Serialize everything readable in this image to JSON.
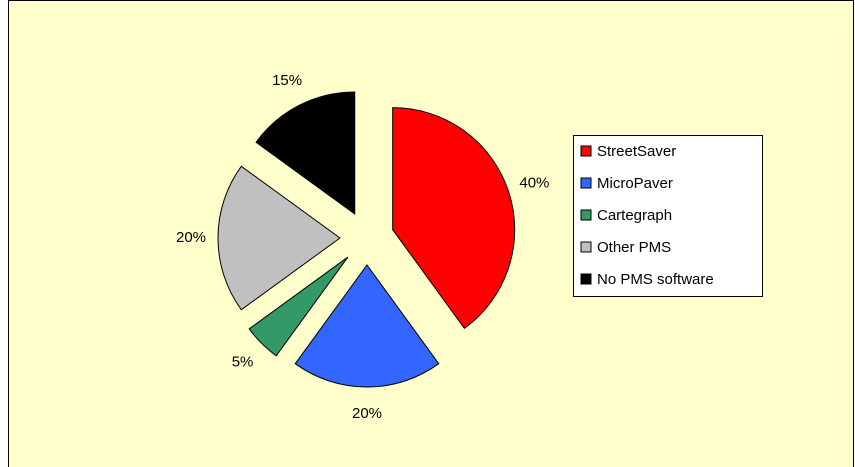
{
  "chart_data": {
    "type": "pie",
    "categories": [
      "StreetSaver",
      "MicroPaver",
      "Cartegraph",
      "Other PMS",
      "No PMS software"
    ],
    "values": [
      40,
      20,
      5,
      20,
      15
    ],
    "value_labels": [
      "40%",
      "20%",
      "5%",
      "20%",
      "15%"
    ],
    "colors": [
      "#ff0000",
      "#3366ff",
      "#339966",
      "#c0c0c0",
      "#000000"
    ],
    "legend": "right"
  }
}
